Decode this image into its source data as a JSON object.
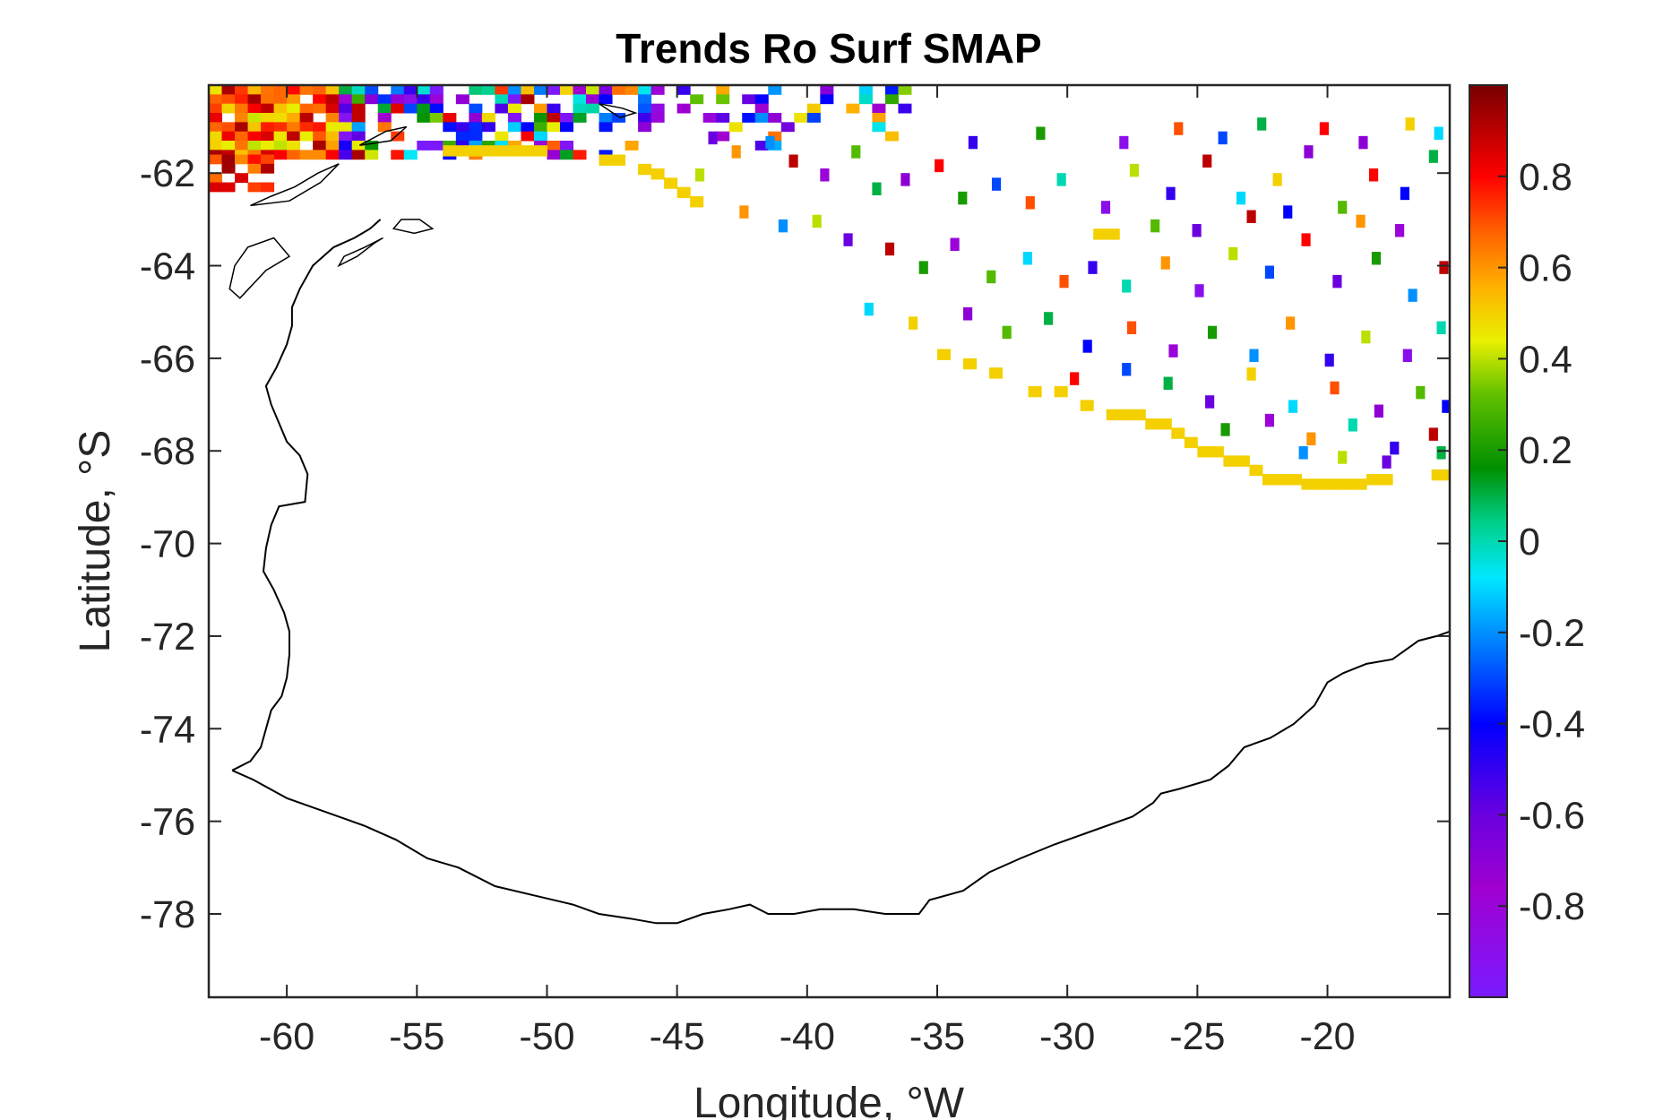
{
  "chart_data": {
    "type": "heatmap",
    "title": "Trends Ro Surf SMAP",
    "xlabel": "Longitude, °W",
    "ylabel": "Latitude, °S",
    "xlim": [
      -63,
      -15.3
    ],
    "ylim": [
      -79.8,
      -60.1
    ],
    "xticks": [
      -60,
      -55,
      -50,
      -45,
      -40,
      -35,
      -30,
      -25,
      -20
    ],
    "yticks": [
      -62,
      -64,
      -66,
      -68,
      -70,
      -72,
      -74,
      -76,
      -78
    ],
    "xtick_labels": [
      "-60",
      "-55",
      "-50",
      "-45",
      "-40",
      "-35",
      "-30",
      "-25",
      "-20"
    ],
    "ytick_labels": [
      "-62",
      "-64",
      "-66",
      "-68",
      "-70",
      "-72",
      "-74",
      "-76",
      "-78"
    ],
    "colorbar": {
      "limits": [
        -1,
        1
      ],
      "ticks": [
        0.8,
        0.6,
        0.4,
        0.2,
        0,
        -0.2,
        -0.4,
        -0.6,
        -0.8
      ],
      "tick_labels": [
        "0.8",
        "0.6",
        "0.4",
        "0.2",
        "0",
        "-0.2",
        "-0.4",
        "-0.6",
        "-0.8"
      ],
      "colormap": "jet-like (violet → blue → cyan → green → yellow → orange → red → dark red)"
    },
    "grid": false,
    "coastline_lonlat": [
      [
        -62.1,
        -74.9
      ],
      [
        -61.3,
        -75.1
      ],
      [
        -60.0,
        -75.5
      ],
      [
        -58.5,
        -75.8
      ],
      [
        -57.0,
        -76.1
      ],
      [
        -55.8,
        -76.4
      ],
      [
        -54.6,
        -76.8
      ],
      [
        -53.4,
        -77.0
      ],
      [
        -52.0,
        -77.4
      ],
      [
        -50.5,
        -77.6
      ],
      [
        -49.0,
        -77.8
      ],
      [
        -48.0,
        -78.0
      ],
      [
        -46.8,
        -78.1
      ],
      [
        -45.8,
        -78.2
      ],
      [
        -45.0,
        -78.2
      ],
      [
        -44.0,
        -78.0
      ],
      [
        -43.0,
        -77.9
      ],
      [
        -42.2,
        -77.8
      ],
      [
        -41.5,
        -78.0
      ],
      [
        -40.5,
        -78.0
      ],
      [
        -39.5,
        -77.9
      ],
      [
        -38.2,
        -77.9
      ],
      [
        -37.0,
        -78.0
      ],
      [
        -35.7,
        -78.0
      ],
      [
        -35.3,
        -77.7
      ],
      [
        -34.0,
        -77.5
      ],
      [
        -33.0,
        -77.1
      ],
      [
        -31.8,
        -76.8
      ],
      [
        -30.5,
        -76.5
      ],
      [
        -29.0,
        -76.2
      ],
      [
        -27.5,
        -75.9
      ],
      [
        -26.7,
        -75.6
      ],
      [
        -26.4,
        -75.4
      ],
      [
        -25.7,
        -75.3
      ],
      [
        -24.5,
        -75.1
      ],
      [
        -23.8,
        -74.8
      ],
      [
        -23.2,
        -74.4
      ],
      [
        -22.2,
        -74.2
      ],
      [
        -21.3,
        -73.9
      ],
      [
        -20.5,
        -73.5
      ],
      [
        -20.0,
        -73.0
      ],
      [
        -19.4,
        -72.8
      ],
      [
        -18.5,
        -72.6
      ],
      [
        -17.5,
        -72.5
      ],
      [
        -16.5,
        -72.1
      ],
      [
        -15.8,
        -72.0
      ],
      [
        -15.3,
        -71.9
      ]
    ],
    "coastline_west_lonlat": [
      [
        -62.1,
        -74.9
      ],
      [
        -61.4,
        -74.7
      ],
      [
        -61.0,
        -74.4
      ],
      [
        -60.8,
        -74.0
      ],
      [
        -60.6,
        -73.6
      ],
      [
        -60.2,
        -73.3
      ],
      [
        -60.0,
        -72.9
      ],
      [
        -59.9,
        -72.4
      ],
      [
        -59.9,
        -71.9
      ],
      [
        -60.1,
        -71.5
      ],
      [
        -60.5,
        -71.0
      ],
      [
        -60.9,
        -70.6
      ],
      [
        -60.8,
        -70.1
      ],
      [
        -60.6,
        -69.6
      ],
      [
        -60.3,
        -69.2
      ],
      [
        -59.3,
        -69.1
      ],
      [
        -59.2,
        -68.5
      ],
      [
        -59.5,
        -68.1
      ],
      [
        -60.0,
        -67.8
      ],
      [
        -60.3,
        -67.4
      ],
      [
        -60.6,
        -67.0
      ],
      [
        -60.8,
        -66.6
      ],
      [
        -60.4,
        -66.2
      ],
      [
        -60.0,
        -65.7
      ],
      [
        -59.8,
        -65.3
      ],
      [
        -59.8,
        -64.9
      ],
      [
        -59.5,
        -64.5
      ],
      [
        -59.0,
        -64.0
      ],
      [
        -58.2,
        -63.6
      ],
      [
        -57.4,
        -63.4
      ],
      [
        -56.8,
        -63.2
      ],
      [
        -56.4,
        -63.0
      ]
    ],
    "islands_lonlat": [
      [
        [
          -61.8,
          -64.7
        ],
        [
          -60.8,
          -64.1
        ],
        [
          -59.9,
          -63.8
        ],
        [
          -60.5,
          -63.4
        ],
        [
          -61.5,
          -63.6
        ],
        [
          -62.0,
          -64.0
        ],
        [
          -62.2,
          -64.5
        ]
      ],
      [
        [
          -58.0,
          -64.0
        ],
        [
          -57.3,
          -63.8
        ],
        [
          -56.6,
          -63.5
        ],
        [
          -56.3,
          -63.4
        ],
        [
          -57.0,
          -63.6
        ],
        [
          -57.8,
          -63.8
        ]
      ],
      [
        [
          -55.9,
          -63.2
        ],
        [
          -55.1,
          -63.3
        ],
        [
          -54.4,
          -63.2
        ],
        [
          -54.9,
          -63.0
        ],
        [
          -55.6,
          -63.0
        ]
      ],
      [
        [
          -61.4,
          -62.7
        ],
        [
          -60.6,
          -62.5
        ],
        [
          -59.7,
          -62.3
        ],
        [
          -58.8,
          -62.0
        ],
        [
          -58.0,
          -61.8
        ],
        [
          -58.7,
          -62.2
        ],
        [
          -59.9,
          -62.6
        ]
      ],
      [
        [
          -57.2,
          -61.4
        ],
        [
          -56.2,
          -61.1
        ],
        [
          -55.4,
          -61.0
        ],
        [
          -56.0,
          -61.3
        ]
      ],
      [
        [
          -48.0,
          -60.5
        ],
        [
          -47.1,
          -60.6
        ],
        [
          -46.6,
          -60.7
        ],
        [
          -47.2,
          -60.8
        ]
      ]
    ],
    "orange_band_value": 0.5,
    "orange_band_cells": [
      [
        -54.0,
        -61.4
      ],
      [
        -53.5,
        -61.4
      ],
      [
        -53.0,
        -61.4
      ],
      [
        -52.5,
        -61.4
      ],
      [
        -52.0,
        -61.4
      ],
      [
        -51.5,
        -61.4
      ],
      [
        -51.0,
        -61.4
      ],
      [
        -50.5,
        -61.4
      ],
      [
        -48.0,
        -61.6
      ],
      [
        -47.5,
        -61.6
      ],
      [
        -46.5,
        -61.8
      ],
      [
        -46.0,
        -61.9
      ],
      [
        -45.5,
        -62.1
      ],
      [
        -45.0,
        -62.3
      ],
      [
        -44.5,
        -62.5
      ],
      [
        -29.0,
        -63.2
      ],
      [
        -28.5,
        -63.2
      ],
      [
        -35.0,
        -65.8
      ],
      [
        -34.0,
        -66.0
      ],
      [
        -33.0,
        -66.2
      ],
      [
        -31.5,
        -66.6
      ],
      [
        -30.5,
        -66.6
      ],
      [
        -29.5,
        -66.9
      ],
      [
        -28.5,
        -67.1
      ],
      [
        -28.0,
        -67.1
      ],
      [
        -27.5,
        -67.1
      ],
      [
        -27.0,
        -67.3
      ],
      [
        -26.5,
        -67.3
      ],
      [
        -26.0,
        -67.5
      ],
      [
        -25.5,
        -67.7
      ],
      [
        -25.0,
        -67.9
      ],
      [
        -24.5,
        -67.9
      ],
      [
        -24.0,
        -68.1
      ],
      [
        -23.5,
        -68.1
      ],
      [
        -23.0,
        -68.3
      ],
      [
        -22.5,
        -68.5
      ],
      [
        -22.0,
        -68.5
      ],
      [
        -21.5,
        -68.5
      ],
      [
        -21.0,
        -68.6
      ],
      [
        -20.5,
        -68.6
      ],
      [
        -20.0,
        -68.6
      ],
      [
        -19.5,
        -68.6
      ],
      [
        -19.0,
        -68.6
      ],
      [
        -18.5,
        -68.5
      ],
      [
        -18.0,
        -68.5
      ],
      [
        -16.0,
        -68.4
      ],
      [
        -15.5,
        -68.4
      ]
    ],
    "sparse_cells": [
      [
        -43.8,
        -61.1,
        -0.6
      ],
      [
        -42.9,
        -61.4,
        0.6
      ],
      [
        -41.6,
        -61.2,
        -0.2
      ],
      [
        -40.7,
        -61.6,
        0.9
      ],
      [
        -39.5,
        -61.9,
        -0.8
      ],
      [
        -38.3,
        -61.4,
        0.3
      ],
      [
        -37.5,
        -62.2,
        0.1
      ],
      [
        -36.4,
        -62.0,
        -0.7
      ],
      [
        -35.1,
        -61.7,
        0.8
      ],
      [
        -34.2,
        -62.4,
        0.2
      ],
      [
        -32.9,
        -62.1,
        -0.3
      ],
      [
        -31.6,
        -62.5,
        0.7
      ],
      [
        -30.4,
        -62.0,
        0.0
      ],
      [
        -28.7,
        -62.6,
        -0.9
      ],
      [
        -27.6,
        -61.8,
        0.4
      ],
      [
        -26.2,
        -62.3,
        -0.5
      ],
      [
        -24.8,
        -61.6,
        0.9
      ],
      [
        -23.5,
        -62.4,
        -0.1
      ],
      [
        -22.1,
        -62.0,
        0.5
      ],
      [
        -20.9,
        -61.4,
        -0.7
      ],
      [
        -19.6,
        -62.6,
        0.3
      ],
      [
        -18.4,
        -61.9,
        0.8
      ],
      [
        -17.2,
        -62.3,
        -0.4
      ],
      [
        -16.1,
        -61.5,
        0.1
      ],
      [
        -42.6,
        -62.7,
        0.6
      ],
      [
        -41.1,
        -63.0,
        -0.2
      ],
      [
        -39.8,
        -62.9,
        0.4
      ],
      [
        -38.6,
        -63.3,
        -0.6
      ],
      [
        -37.0,
        -63.5,
        0.9
      ],
      [
        -35.7,
        -63.9,
        0.2
      ],
      [
        -34.5,
        -63.4,
        -0.8
      ],
      [
        -33.1,
        -64.1,
        0.3
      ],
      [
        -31.7,
        -63.7,
        -0.1
      ],
      [
        -30.3,
        -64.2,
        0.7
      ],
      [
        -29.2,
        -63.9,
        -0.5
      ],
      [
        -27.9,
        -64.3,
        0.0
      ],
      [
        -26.4,
        -63.8,
        0.6
      ],
      [
        -25.1,
        -64.4,
        -0.9
      ],
      [
        -23.8,
        -63.6,
        0.4
      ],
      [
        -22.4,
        -64.0,
        -0.3
      ],
      [
        -21.0,
        -63.3,
        0.8
      ],
      [
        -19.8,
        -64.2,
        -0.6
      ],
      [
        -18.3,
        -63.7,
        0.2
      ],
      [
        -16.9,
        -64.5,
        -0.2
      ],
      [
        -15.7,
        -63.9,
        0.9
      ],
      [
        -37.8,
        -64.8,
        -0.1
      ],
      [
        -36.1,
        -65.1,
        0.5
      ],
      [
        -34.0,
        -64.9,
        -0.7
      ],
      [
        -32.5,
        -65.3,
        0.3
      ],
      [
        -30.9,
        -65.0,
        0.1
      ],
      [
        -29.4,
        -65.6,
        -0.4
      ],
      [
        -27.7,
        -65.2,
        0.7
      ],
      [
        -26.1,
        -65.7,
        -0.8
      ],
      [
        -24.6,
        -65.3,
        0.2
      ],
      [
        -23.0,
        -65.8,
        -0.2
      ],
      [
        -21.6,
        -65.1,
        0.6
      ],
      [
        -20.1,
        -65.9,
        -0.5
      ],
      [
        -18.7,
        -65.4,
        0.4
      ],
      [
        -17.1,
        -65.8,
        -0.9
      ],
      [
        -15.8,
        -65.2,
        0.0
      ],
      [
        -29.9,
        -66.3,
        0.8
      ],
      [
        -27.9,
        -66.1,
        -0.3
      ],
      [
        -26.3,
        -66.4,
        0.1
      ],
      [
        -24.7,
        -66.8,
        -0.6
      ],
      [
        -23.1,
        -66.2,
        0.5
      ],
      [
        -21.5,
        -66.9,
        -0.1
      ],
      [
        -19.9,
        -66.5,
        0.7
      ],
      [
        -18.2,
        -67.0,
        -0.7
      ],
      [
        -16.6,
        -66.6,
        0.3
      ],
      [
        -15.6,
        -66.9,
        -0.4
      ],
      [
        -24.1,
        -67.4,
        0.2
      ],
      [
        -22.4,
        -67.2,
        -0.8
      ],
      [
        -20.8,
        -67.6,
        0.6
      ],
      [
        -19.2,
        -67.3,
        0.0
      ],
      [
        -17.6,
        -67.8,
        -0.5
      ],
      [
        -16.1,
        -67.5,
        0.9
      ],
      [
        -21.1,
        -67.9,
        -0.2
      ],
      [
        -19.6,
        -68.0,
        0.4
      ],
      [
        -17.9,
        -68.1,
        -0.6
      ],
      [
        -15.8,
        -67.9,
        0.1
      ],
      [
        -26.8,
        -63.0,
        0.3
      ],
      [
        -25.2,
        -63.1,
        -0.6
      ],
      [
        -23.1,
        -62.8,
        0.9
      ],
      [
        -21.7,
        -62.7,
        -0.4
      ],
      [
        -18.9,
        -62.9,
        0.6
      ],
      [
        -17.4,
        -63.1,
        -0.8
      ],
      [
        -44.3,
        -61.9,
        0.4
      ],
      [
        -33.8,
        -61.2,
        -0.5
      ],
      [
        -31.2,
        -61.0,
        0.2
      ],
      [
        -28.0,
        -61.2,
        -0.9
      ],
      [
        -25.9,
        -60.9,
        0.7
      ],
      [
        -24.2,
        -61.1,
        -0.3
      ],
      [
        -22.7,
        -60.8,
        0.1
      ],
      [
        -20.3,
        -60.9,
        0.8
      ],
      [
        -18.8,
        -61.2,
        -0.7
      ],
      [
        -17.0,
        -60.8,
        0.5
      ],
      [
        -15.9,
        -61.0,
        -0.1
      ]
    ],
    "dense_region": {
      "lon_range": [
        -63,
        -36
      ],
      "lat_range": [
        -61.6,
        -60.1
      ],
      "cell_size_deg": [
        0.5,
        0.2
      ],
      "notes": "dense colored cells along the northern edge near the Antarctic Peninsula"
    }
  }
}
